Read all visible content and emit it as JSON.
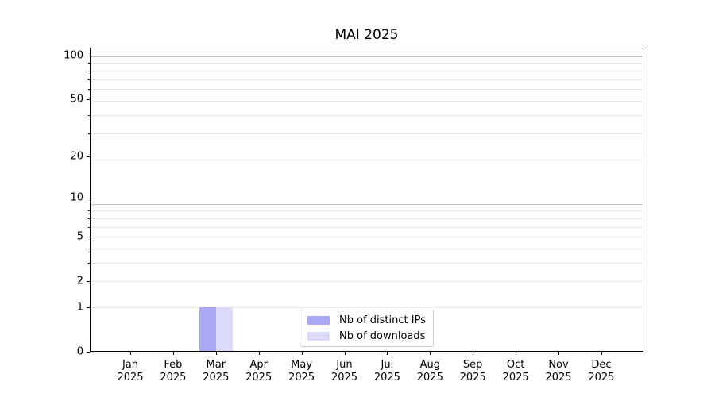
{
  "chart_data": {
    "type": "bar",
    "title": "MAI 2025",
    "categories": [
      "Jan",
      "Feb",
      "Mar",
      "Apr",
      "May",
      "Jun",
      "Jul",
      "Aug",
      "Sep",
      "Oct",
      "Nov",
      "Dec"
    ],
    "category_year": "2025",
    "series": [
      {
        "name": "Nb of distinct IPs",
        "color": "#a9a9f6",
        "values": [
          0,
          0,
          1,
          0,
          0,
          0,
          0,
          0,
          0,
          0,
          0,
          0
        ]
      },
      {
        "name": "Nb of downloads",
        "color": "#dbdbf9",
        "values": [
          0,
          0,
          1,
          0,
          0,
          0,
          0,
          0,
          0,
          0,
          0,
          0
        ]
      }
    ],
    "yaxis": {
      "scale": "log10(1+y)",
      "tick_labels": [
        0,
        1,
        2,
        5,
        10,
        20,
        50,
        100
      ],
      "minor_grid_values_plus1": [
        2,
        3,
        4,
        5,
        6,
        7,
        8,
        9,
        20,
        30,
        40,
        50,
        60,
        70,
        80,
        90
      ],
      "decade_grid_values_plus1": [
        10,
        100
      ],
      "ylim": [
        0,
        113
      ]
    },
    "xlabel": "",
    "ylabel": "",
    "grid": "on",
    "legend_position": "lower center"
  },
  "colors": {
    "background": "#ffffff",
    "axis": "#000000",
    "grid_minor": "#e9e9e9",
    "grid_decade": "#c2c2c2",
    "legend_border": "#cccccc",
    "bar_distinct_ips": "#a9a9f6",
    "bar_downloads": "#dbdbf9"
  }
}
